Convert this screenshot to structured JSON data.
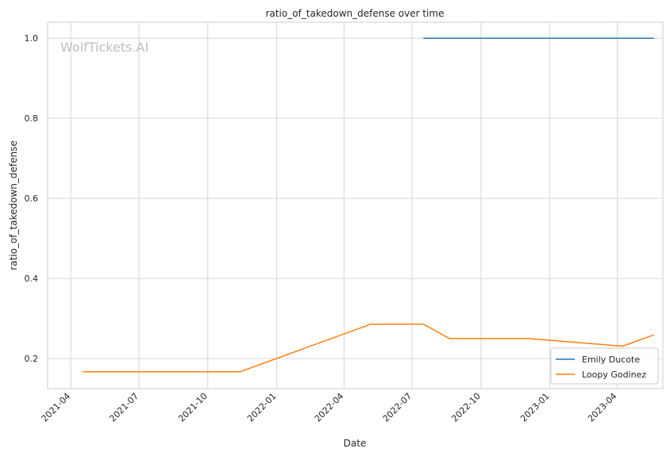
{
  "chart_data": {
    "type": "line",
    "title": "ratio_of_takedown_defense over time",
    "xlabel": "Date",
    "ylabel": "ratio_of_takedown_defense",
    "watermark": "WolfTickets.AI",
    "x_ticks": [
      "2021-04",
      "2021-07",
      "2021-10",
      "2022-01",
      "2022-04",
      "2022-07",
      "2022-10",
      "2023-01",
      "2023-04"
    ],
    "y_ticks": [
      "0.2",
      "0.4",
      "0.6",
      "0.8",
      "1.0"
    ],
    "xlim": [
      "2021-03-01",
      "2023-06-01"
    ],
    "ylim": [
      0.125,
      1.04
    ],
    "grid": true,
    "legend_position": "lower-right",
    "series": [
      {
        "name": "Emily Ducote",
        "color": "#1f77b4",
        "points": [
          {
            "x": "2022-07-16",
            "y": 1.0
          },
          {
            "x": "2023-05-20",
            "y": 1.0
          }
        ]
      },
      {
        "name": "Loopy Godinez",
        "color": "#ff7f0e",
        "points": [
          {
            "x": "2021-04-17",
            "y": 0.167
          },
          {
            "x": "2021-11-13",
            "y": 0.167
          },
          {
            "x": "2022-05-07",
            "y": 0.286
          },
          {
            "x": "2022-07-16",
            "y": 0.286
          },
          {
            "x": "2022-08-20",
            "y": 0.25
          },
          {
            "x": "2022-12-03",
            "y": 0.25
          },
          {
            "x": "2023-04-08",
            "y": 0.231
          },
          {
            "x": "2023-05-20",
            "y": 0.259
          }
        ]
      }
    ]
  }
}
